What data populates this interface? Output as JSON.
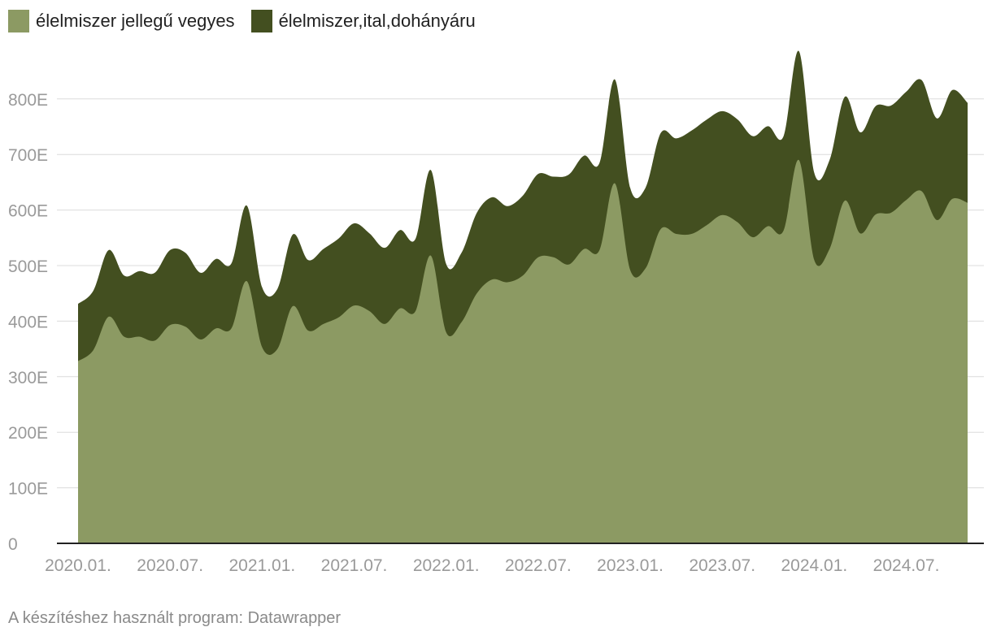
{
  "legend": {
    "items": [
      {
        "label": "élelmiszer jellegű vegyes",
        "color": "#8c9a63"
      },
      {
        "label": "élelmiszer,ital,dohányáru",
        "color": "#434f20"
      }
    ]
  },
  "footer": {
    "credit": "A készítéshez használt program: Datawrapper"
  },
  "chart_data": {
    "type": "area",
    "stacked": true,
    "grid": true,
    "legend_position": "top-left",
    "ylim": [
      0,
      880000
    ],
    "y_ticks": [
      {
        "value": 0,
        "label": "0"
      },
      {
        "value": 100000,
        "label": "100E"
      },
      {
        "value": 200000,
        "label": "200E"
      },
      {
        "value": 300000,
        "label": "300E"
      },
      {
        "value": 400000,
        "label": "400E"
      },
      {
        "value": 500000,
        "label": "500E"
      },
      {
        "value": 600000,
        "label": "600E"
      },
      {
        "value": 700000,
        "label": "700E"
      },
      {
        "value": 800000,
        "label": "800E"
      }
    ],
    "x_ticks": [
      "2020.01.",
      "2020.07.",
      "2021.01.",
      "2021.07.",
      "2022.01.",
      "2022.07.",
      "2023.01.",
      "2023.07.",
      "2024.01.",
      "2024.07."
    ],
    "x": [
      "2020.01.",
      "2020.02.",
      "2020.03.",
      "2020.04.",
      "2020.05.",
      "2020.06.",
      "2020.07.",
      "2020.08.",
      "2020.09.",
      "2020.10.",
      "2020.11.",
      "2020.12.",
      "2021.01.",
      "2021.02.",
      "2021.03.",
      "2021.04.",
      "2021.05.",
      "2021.06.",
      "2021.07.",
      "2021.08.",
      "2021.09.",
      "2021.10.",
      "2021.11.",
      "2021.12.",
      "2022.01.",
      "2022.02.",
      "2022.03.",
      "2022.04.",
      "2022.05.",
      "2022.06.",
      "2022.07.",
      "2022.08.",
      "2022.09.",
      "2022.10.",
      "2022.11.",
      "2022.12.",
      "2023.01.",
      "2023.02.",
      "2023.03.",
      "2023.04.",
      "2023.05.",
      "2023.06.",
      "2023.07.",
      "2023.08.",
      "2023.09.",
      "2023.10.",
      "2023.11.",
      "2023.12.",
      "2024.01.",
      "2024.02.",
      "2024.03.",
      "2024.04.",
      "2024.05.",
      "2024.06.",
      "2024.07.",
      "2024.08.",
      "2024.09.",
      "2024.10.",
      "2024.11."
    ],
    "series": [
      {
        "name": "élelmiszer jellegű vegyes",
        "color": "#8c9a63",
        "values": [
          328000,
          348000,
          408000,
          372000,
          372000,
          365000,
          393000,
          390000,
          367000,
          387000,
          387000,
          472000,
          353000,
          350000,
          427000,
          383000,
          395000,
          407000,
          428000,
          418000,
          395000,
          423000,
          418000,
          518000,
          380000,
          398000,
          450000,
          475000,
          470000,
          482000,
          515000,
          515000,
          502000,
          530000,
          528000,
          648000,
          492000,
          495000,
          566000,
          557000,
          557000,
          573000,
          591000,
          578000,
          551000,
          571000,
          563000,
          690000,
          510000,
          530000,
          617000,
          558000,
          592000,
          595000,
          618000,
          634000,
          582000,
          620000,
          613000
        ]
      },
      {
        "name": "élelmiszer,ital,dohányáru",
        "color": "#434f20",
        "values": [
          103000,
          107000,
          120000,
          110000,
          118000,
          122000,
          135000,
          133000,
          120000,
          125000,
          117000,
          136000,
          108000,
          108000,
          129000,
          127000,
          135000,
          142000,
          148000,
          140000,
          137000,
          141000,
          130000,
          154000,
          123000,
          125000,
          145000,
          148000,
          137000,
          144000,
          150000,
          145000,
          162000,
          168000,
          157000,
          187000,
          148000,
          145000,
          173000,
          172000,
          186000,
          190000,
          187000,
          185000,
          182000,
          180000,
          170000,
          196000,
          157000,
          160000,
          187000,
          182000,
          195000,
          193000,
          195000,
          200000,
          183000,
          196000,
          180000
        ]
      }
    ]
  }
}
